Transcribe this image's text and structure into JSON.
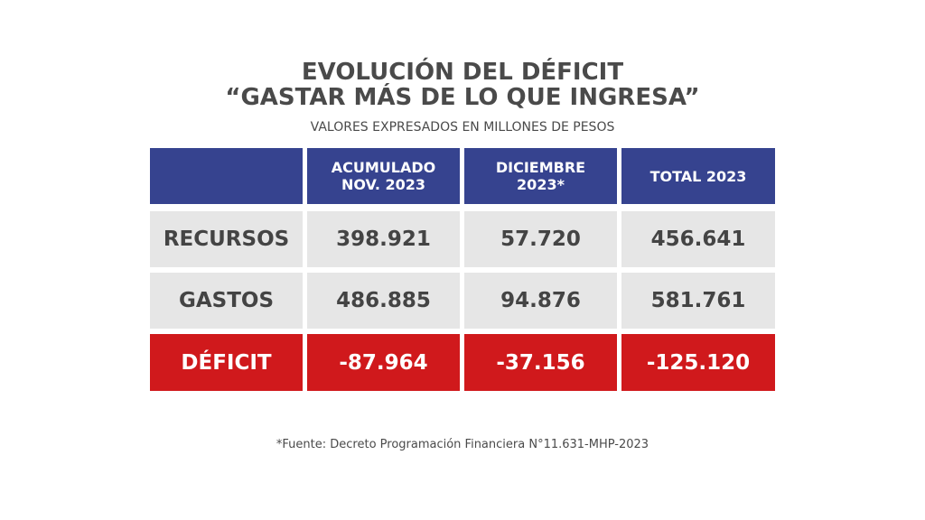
{
  "title_line1": "EVOLUCIÓN DEL DÉFICIT",
  "title_line2": "“GASTAR MÁS DE LO QUE INGRESA”",
  "subtitle": "VALORES EXPRESADOS EN MILLONES DE PESOS",
  "headers": [
    "",
    "ACUMULADO NOV. 2023",
    "DICIEMBRE 2023*",
    "TOTAL 2023"
  ],
  "rows": [
    {
      "label": "RECURSOS",
      "values": [
        "398.921",
        "57.720",
        "456.641"
      ]
    },
    {
      "label": "GASTOS",
      "values": [
        "486.885",
        "94.876",
        "581.761"
      ]
    },
    {
      "label": "DÉFICIT",
      "values": [
        "-87.964",
        "-37.156",
        "-125.120"
      ]
    }
  ],
  "footnote": "*Fuente: Decreto Programación Financiera N°11.631-MHP-2023",
  "colors": {
    "header": "#36438f",
    "row": "#e6e6e6",
    "deficit": "#d0191c"
  }
}
